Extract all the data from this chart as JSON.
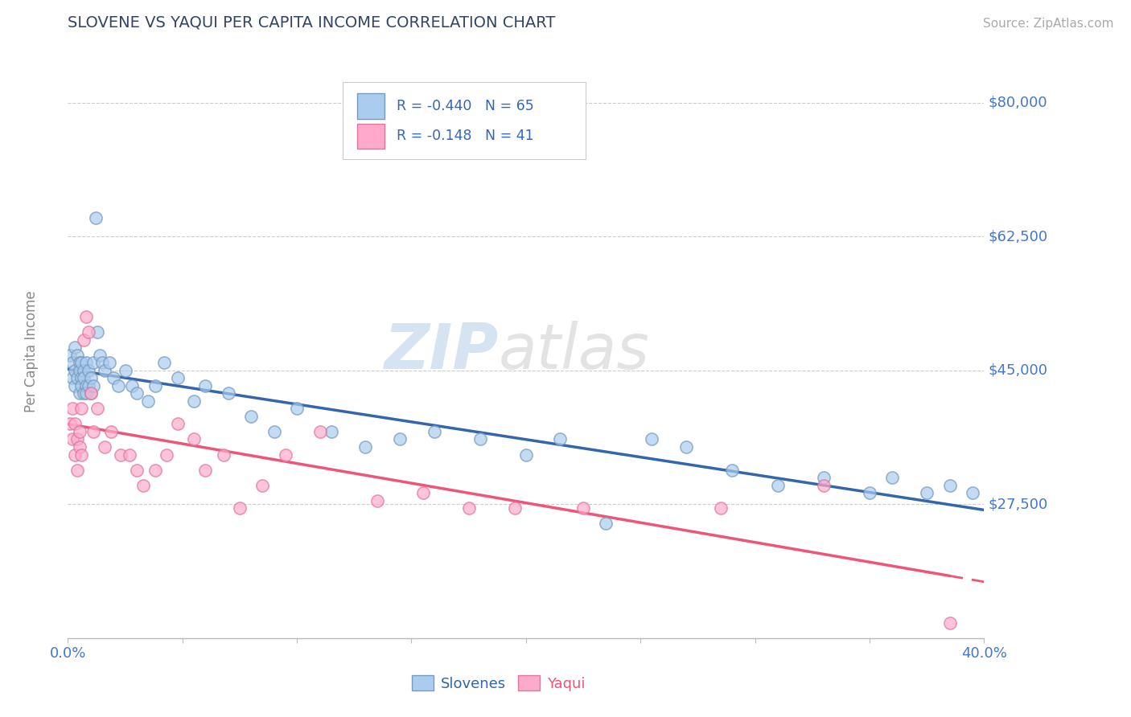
{
  "title": "SLOVENE VS YAQUI PER CAPITA INCOME CORRELATION CHART",
  "source_text": "Source: ZipAtlas.com",
  "ylabel": "Per Capita Income",
  "xlim": [
    0.0,
    0.4
  ],
  "ylim": [
    10000,
    85000
  ],
  "yticks": [
    27500,
    45000,
    62500,
    80000
  ],
  "ytick_labels": [
    "$27,500",
    "$45,000",
    "$62,500",
    "$80,000"
  ],
  "xticks": [
    0.0,
    0.05,
    0.1,
    0.15,
    0.2,
    0.25,
    0.3,
    0.35,
    0.4
  ],
  "slovene_R": -0.44,
  "slovene_N": 65,
  "yaqui_R": -0.148,
  "yaqui_N": 41,
  "slovene_color": "#AACCEE",
  "yaqui_color": "#FFAACC",
  "slovene_edge_color": "#7799BB",
  "yaqui_edge_color": "#DD7799",
  "slovene_line_color": "#3366AA",
  "yaqui_line_color": "#EE5577",
  "legend_text_color": "#3366BB",
  "background_color": "#FFFFFF",
  "grid_color": "#CCCCCC",
  "title_color": "#334466",
  "ytick_color": "#4477CC",
  "xtick_color": "#4477CC",
  "slovene_x": [
    0.001,
    0.002,
    0.002,
    0.003,
    0.003,
    0.003,
    0.004,
    0.004,
    0.005,
    0.005,
    0.005,
    0.006,
    0.006,
    0.006,
    0.007,
    0.007,
    0.007,
    0.008,
    0.008,
    0.008,
    0.009,
    0.009,
    0.01,
    0.01,
    0.011,
    0.011,
    0.012,
    0.013,
    0.014,
    0.015,
    0.016,
    0.018,
    0.02,
    0.022,
    0.025,
    0.028,
    0.03,
    0.035,
    0.038,
    0.042,
    0.048,
    0.055,
    0.06,
    0.07,
    0.08,
    0.09,
    0.1,
    0.115,
    0.13,
    0.145,
    0.16,
    0.18,
    0.2,
    0.215,
    0.235,
    0.255,
    0.27,
    0.29,
    0.31,
    0.33,
    0.35,
    0.36,
    0.375,
    0.385,
    0.395
  ],
  "slovene_y": [
    47000,
    46000,
    44000,
    48000,
    45000,
    43000,
    47000,
    44000,
    46000,
    45000,
    42000,
    44000,
    46000,
    43000,
    45000,
    42000,
    44000,
    43000,
    46000,
    42000,
    45000,
    43000,
    44000,
    42000,
    46000,
    43000,
    65000,
    50000,
    47000,
    46000,
    45000,
    46000,
    44000,
    43000,
    45000,
    43000,
    42000,
    41000,
    43000,
    46000,
    44000,
    41000,
    43000,
    42000,
    39000,
    37000,
    40000,
    37000,
    35000,
    36000,
    37000,
    36000,
    34000,
    36000,
    25000,
    36000,
    35000,
    32000,
    30000,
    31000,
    29000,
    31000,
    29000,
    30000,
    29000
  ],
  "yaqui_x": [
    0.001,
    0.002,
    0.002,
    0.003,
    0.003,
    0.004,
    0.004,
    0.005,
    0.005,
    0.006,
    0.006,
    0.007,
    0.008,
    0.009,
    0.01,
    0.011,
    0.013,
    0.016,
    0.019,
    0.023,
    0.027,
    0.03,
    0.033,
    0.038,
    0.043,
    0.048,
    0.055,
    0.06,
    0.068,
    0.075,
    0.085,
    0.095,
    0.11,
    0.135,
    0.155,
    0.175,
    0.195,
    0.225,
    0.285,
    0.33,
    0.385
  ],
  "yaqui_y": [
    38000,
    40000,
    36000,
    38000,
    34000,
    36000,
    32000,
    37000,
    35000,
    40000,
    34000,
    49000,
    52000,
    50000,
    42000,
    37000,
    40000,
    35000,
    37000,
    34000,
    34000,
    32000,
    30000,
    32000,
    34000,
    38000,
    36000,
    32000,
    34000,
    27000,
    30000,
    34000,
    37000,
    28000,
    29000,
    27000,
    27000,
    27000,
    27000,
    30000,
    12000
  ],
  "watermark_zip": "ZIP",
  "watermark_atlas": "atlas"
}
